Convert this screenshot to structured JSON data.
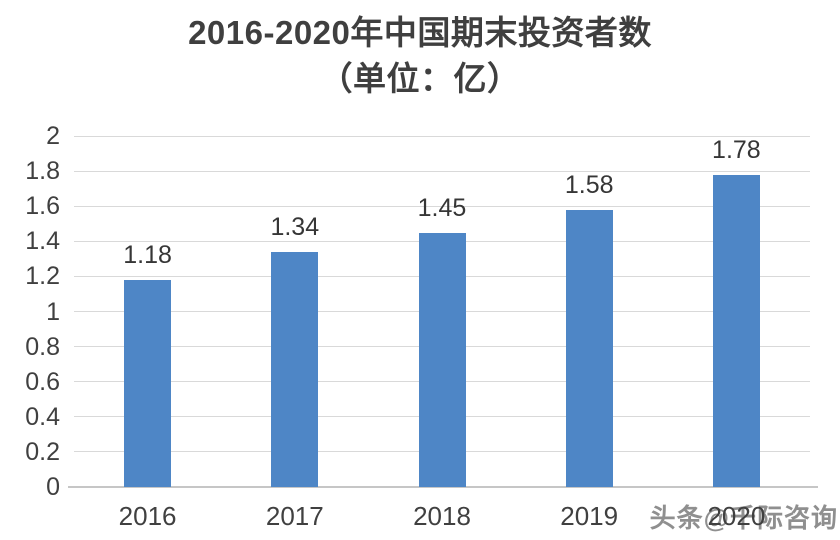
{
  "chart": {
    "title": "2016-2020年中国期末投资者数",
    "subtitle": "（单位：亿）"
  },
  "chart_data": {
    "type": "bar",
    "title": "2016-2020年中国期末投资者数",
    "subtitle": "（单位：亿）",
    "categories": [
      "2016",
      "2017",
      "2018",
      "2019",
      "2020"
    ],
    "values": [
      1.18,
      1.34,
      1.45,
      1.58,
      1.78
    ],
    "data_labels": [
      "1.18",
      "1.34",
      "1.45",
      "1.58",
      "1.78"
    ],
    "xlabel": "",
    "ylabel": "",
    "ylim": [
      0,
      2
    ],
    "ytick_step": 0.2,
    "ytick_labels": [
      "0",
      "0.2",
      "0.4",
      "0.6",
      "0.8",
      "1",
      "1.2",
      "1.4",
      "1.6",
      "1.8",
      "2"
    ],
    "grid": true,
    "legend": false,
    "bar_color": "#4e86c6"
  },
  "watermark": {
    "text": "头条@千际咨询"
  },
  "colors": {
    "bar": "#4e86c6",
    "gridline": "#d9d9d9",
    "axis_line": "#c6c6c6",
    "label_text": "#404040",
    "title_text": "#3f3f3f",
    "watermark_text": "#8f8f8f",
    "background": "#ffffff"
  }
}
